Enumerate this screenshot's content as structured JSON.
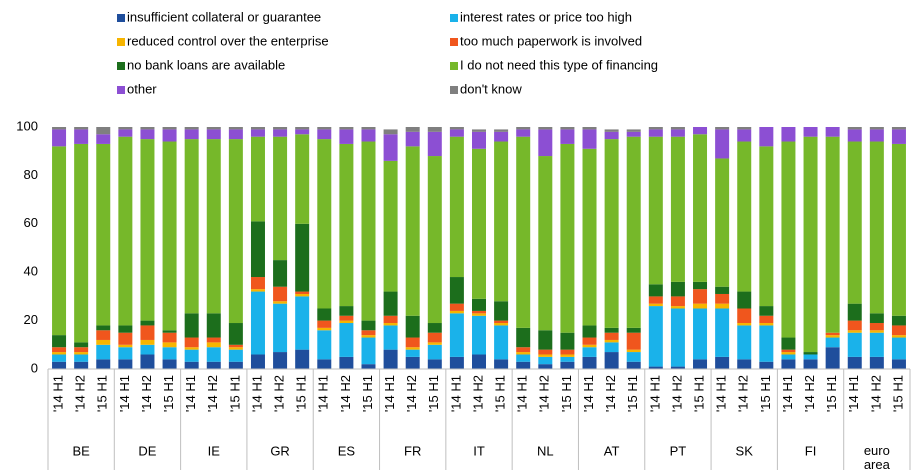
{
  "chart_data": {
    "type": "stacked-bar",
    "categories": [
      "'14 H1",
      "'14 H2",
      "'15 H1",
      "'14 H1",
      "'14 H2",
      "'15 H1",
      "'14 H1",
      "'14 H2",
      "'15 H1",
      "'14 H1",
      "'14 H2",
      "'15 H1",
      "'14 H1",
      "'14 H2",
      "'15 H1",
      "'14 H1",
      "'14 H2",
      "'15 H1",
      "'14 H1",
      "'14 H2",
      "'15 H1",
      "'14 H1",
      "'14 H2",
      "'15 H1",
      "'14 H1",
      "'14 H2",
      "'15 H1",
      "'14 H1",
      "'14 H2",
      "'15 H1",
      "'14 H1",
      "'14 H2",
      "'15 H1",
      "'14 H1",
      "'14 H2",
      "'15 H1",
      "'14 H1",
      "'14 H2",
      "'15 H1"
    ],
    "groups": [
      "BE",
      "DE",
      "IE",
      "GR",
      "ES",
      "FR",
      "IT",
      "NL",
      "AT",
      "PT",
      "SK",
      "FI",
      "euro area"
    ],
    "ylim": [
      0,
      100
    ],
    "yticks": [
      0,
      20,
      40,
      60,
      80,
      100
    ],
    "grid": false,
    "series": [
      {
        "name": "insufficient collateral or guarantee",
        "color": "#1f4e9c",
        "values": [
          3,
          3,
          4,
          4,
          6,
          4,
          3,
          3,
          3,
          6,
          7,
          8,
          4,
          5,
          2,
          8,
          5,
          4,
          5,
          6,
          4,
          3,
          2,
          3,
          5,
          7,
          3,
          1,
          1,
          4,
          5,
          4,
          3,
          4,
          4,
          9,
          5,
          5,
          4
        ]
      },
      {
        "name": "interest rates or price too high",
        "color": "#1ab2ea",
        "values": [
          3,
          3,
          6,
          5,
          4,
          5,
          5,
          6,
          5,
          26,
          20,
          22,
          12,
          14,
          11,
          10,
          3,
          6,
          18,
          16,
          14,
          3,
          3,
          2,
          4,
          4,
          4,
          25,
          24,
          21,
          20,
          14,
          15,
          2,
          2,
          4,
          10,
          10,
          9
        ]
      },
      {
        "name": "reduced control over the enterprise",
        "color": "#f7b500",
        "values": [
          1,
          1,
          2,
          1,
          2,
          2,
          1,
          2,
          1,
          1,
          1,
          1,
          1,
          1,
          1,
          1,
          1,
          1,
          1,
          1,
          1,
          1,
          1,
          1,
          1,
          1,
          1,
          1,
          1,
          2,
          2,
          1,
          1,
          1,
          0,
          1,
          1,
          1,
          1
        ]
      },
      {
        "name": "too much paperwork is involved",
        "color": "#f0561d",
        "values": [
          2,
          2,
          4,
          5,
          6,
          4,
          4,
          2,
          1,
          5,
          6,
          1,
          3,
          2,
          2,
          3,
          4,
          4,
          3,
          1,
          1,
          2,
          2,
          2,
          3,
          3,
          7,
          3,
          4,
          6,
          4,
          6,
          3,
          1,
          0,
          1,
          4,
          3,
          4
        ]
      },
      {
        "name": "no bank loans are available",
        "color": "#1c6e1c",
        "values": [
          5,
          2,
          2,
          3,
          2,
          1,
          10,
          10,
          9,
          23,
          11,
          28,
          5,
          4,
          4,
          10,
          9,
          4,
          11,
          5,
          8,
          8,
          8,
          7,
          5,
          2,
          2,
          5,
          6,
          3,
          3,
          7,
          4,
          5,
          1,
          0,
          7,
          4,
          4
        ]
      },
      {
        "name": "I do not need this type of financing",
        "color": "#76b82a",
        "values": [
          78,
          82,
          75,
          78,
          75,
          78,
          72,
          72,
          76,
          35,
          51,
          37,
          70,
          67,
          74,
          54,
          70,
          69,
          58,
          62,
          66,
          79,
          72,
          78,
          73,
          78,
          79,
          61,
          60,
          61,
          53,
          62,
          66,
          81,
          89,
          81,
          67,
          71,
          71
        ]
      },
      {
        "name": "other",
        "color": "#8c4fd3",
        "values": [
          7,
          6,
          4,
          3,
          4,
          5,
          4,
          4,
          4,
          3,
          3,
          2,
          4,
          6,
          5,
          11,
          6,
          10,
          3,
          7,
          4,
          3,
          11,
          6,
          8,
          3,
          2,
          3,
          3,
          3,
          12,
          5,
          8,
          6,
          4,
          4,
          5,
          5,
          6
        ]
      },
      {
        "name": "don't know",
        "color": "#7f7f7f",
        "values": [
          1,
          1,
          3,
          1,
          1,
          1,
          1,
          1,
          1,
          1,
          1,
          1,
          1,
          1,
          1,
          2,
          2,
          2,
          1,
          1,
          1,
          1,
          1,
          1,
          1,
          1,
          1,
          1,
          1,
          0,
          1,
          1,
          0,
          0,
          0,
          0,
          1,
          1,
          1
        ]
      }
    ]
  }
}
